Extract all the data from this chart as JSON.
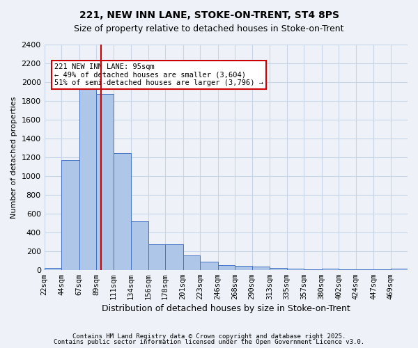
{
  "title1": "221, NEW INN LANE, STOKE-ON-TRENT, ST4 8PS",
  "title2": "Size of property relative to detached houses in Stoke-on-Trent",
  "xlabel": "Distribution of detached houses by size in Stoke-on-Trent",
  "ylabel": "Number of detached properties",
  "bin_labels": [
    "22sqm",
    "44sqm",
    "67sqm",
    "89sqm",
    "111sqm",
    "134sqm",
    "156sqm",
    "178sqm",
    "201sqm",
    "223sqm",
    "246sqm",
    "268sqm",
    "290sqm",
    "313sqm",
    "335sqm",
    "357sqm",
    "380sqm",
    "402sqm",
    "424sqm",
    "447sqm",
    "469sqm"
  ],
  "bin_edges": [
    22,
    44,
    67,
    89,
    111,
    134,
    156,
    178,
    201,
    223,
    246,
    268,
    290,
    313,
    335,
    357,
    380,
    402,
    424,
    447,
    469
  ],
  "bar_values": [
    20,
    1170,
    1950,
    1870,
    1240,
    520,
    275,
    270,
    155,
    90,
    50,
    45,
    35,
    20,
    15,
    5,
    10,
    5,
    3,
    2,
    10
  ],
  "bar_color": "#aec6e8",
  "bar_edge_color": "#4472c4",
  "grid_color": "#c8d4e8",
  "background_color": "#eef2f8",
  "vline_x": 95,
  "vline_color": "#cc0000",
  "annotation_text": "221 NEW INN LANE: 95sqm\n← 49% of detached houses are smaller (3,604)\n51% of semi-detached houses are larger (3,796) →",
  "annotation_box_color": "#ffffff",
  "annotation_box_edge": "#cc0000",
  "ylim": [
    0,
    2400
  ],
  "yticks": [
    0,
    200,
    400,
    600,
    800,
    1000,
    1200,
    1400,
    1600,
    1800,
    2000,
    2200,
    2400
  ],
  "footer1": "Contains HM Land Registry data © Crown copyright and database right 2025.",
  "footer2": "Contains public sector information licensed under the Open Government Licence v3.0."
}
